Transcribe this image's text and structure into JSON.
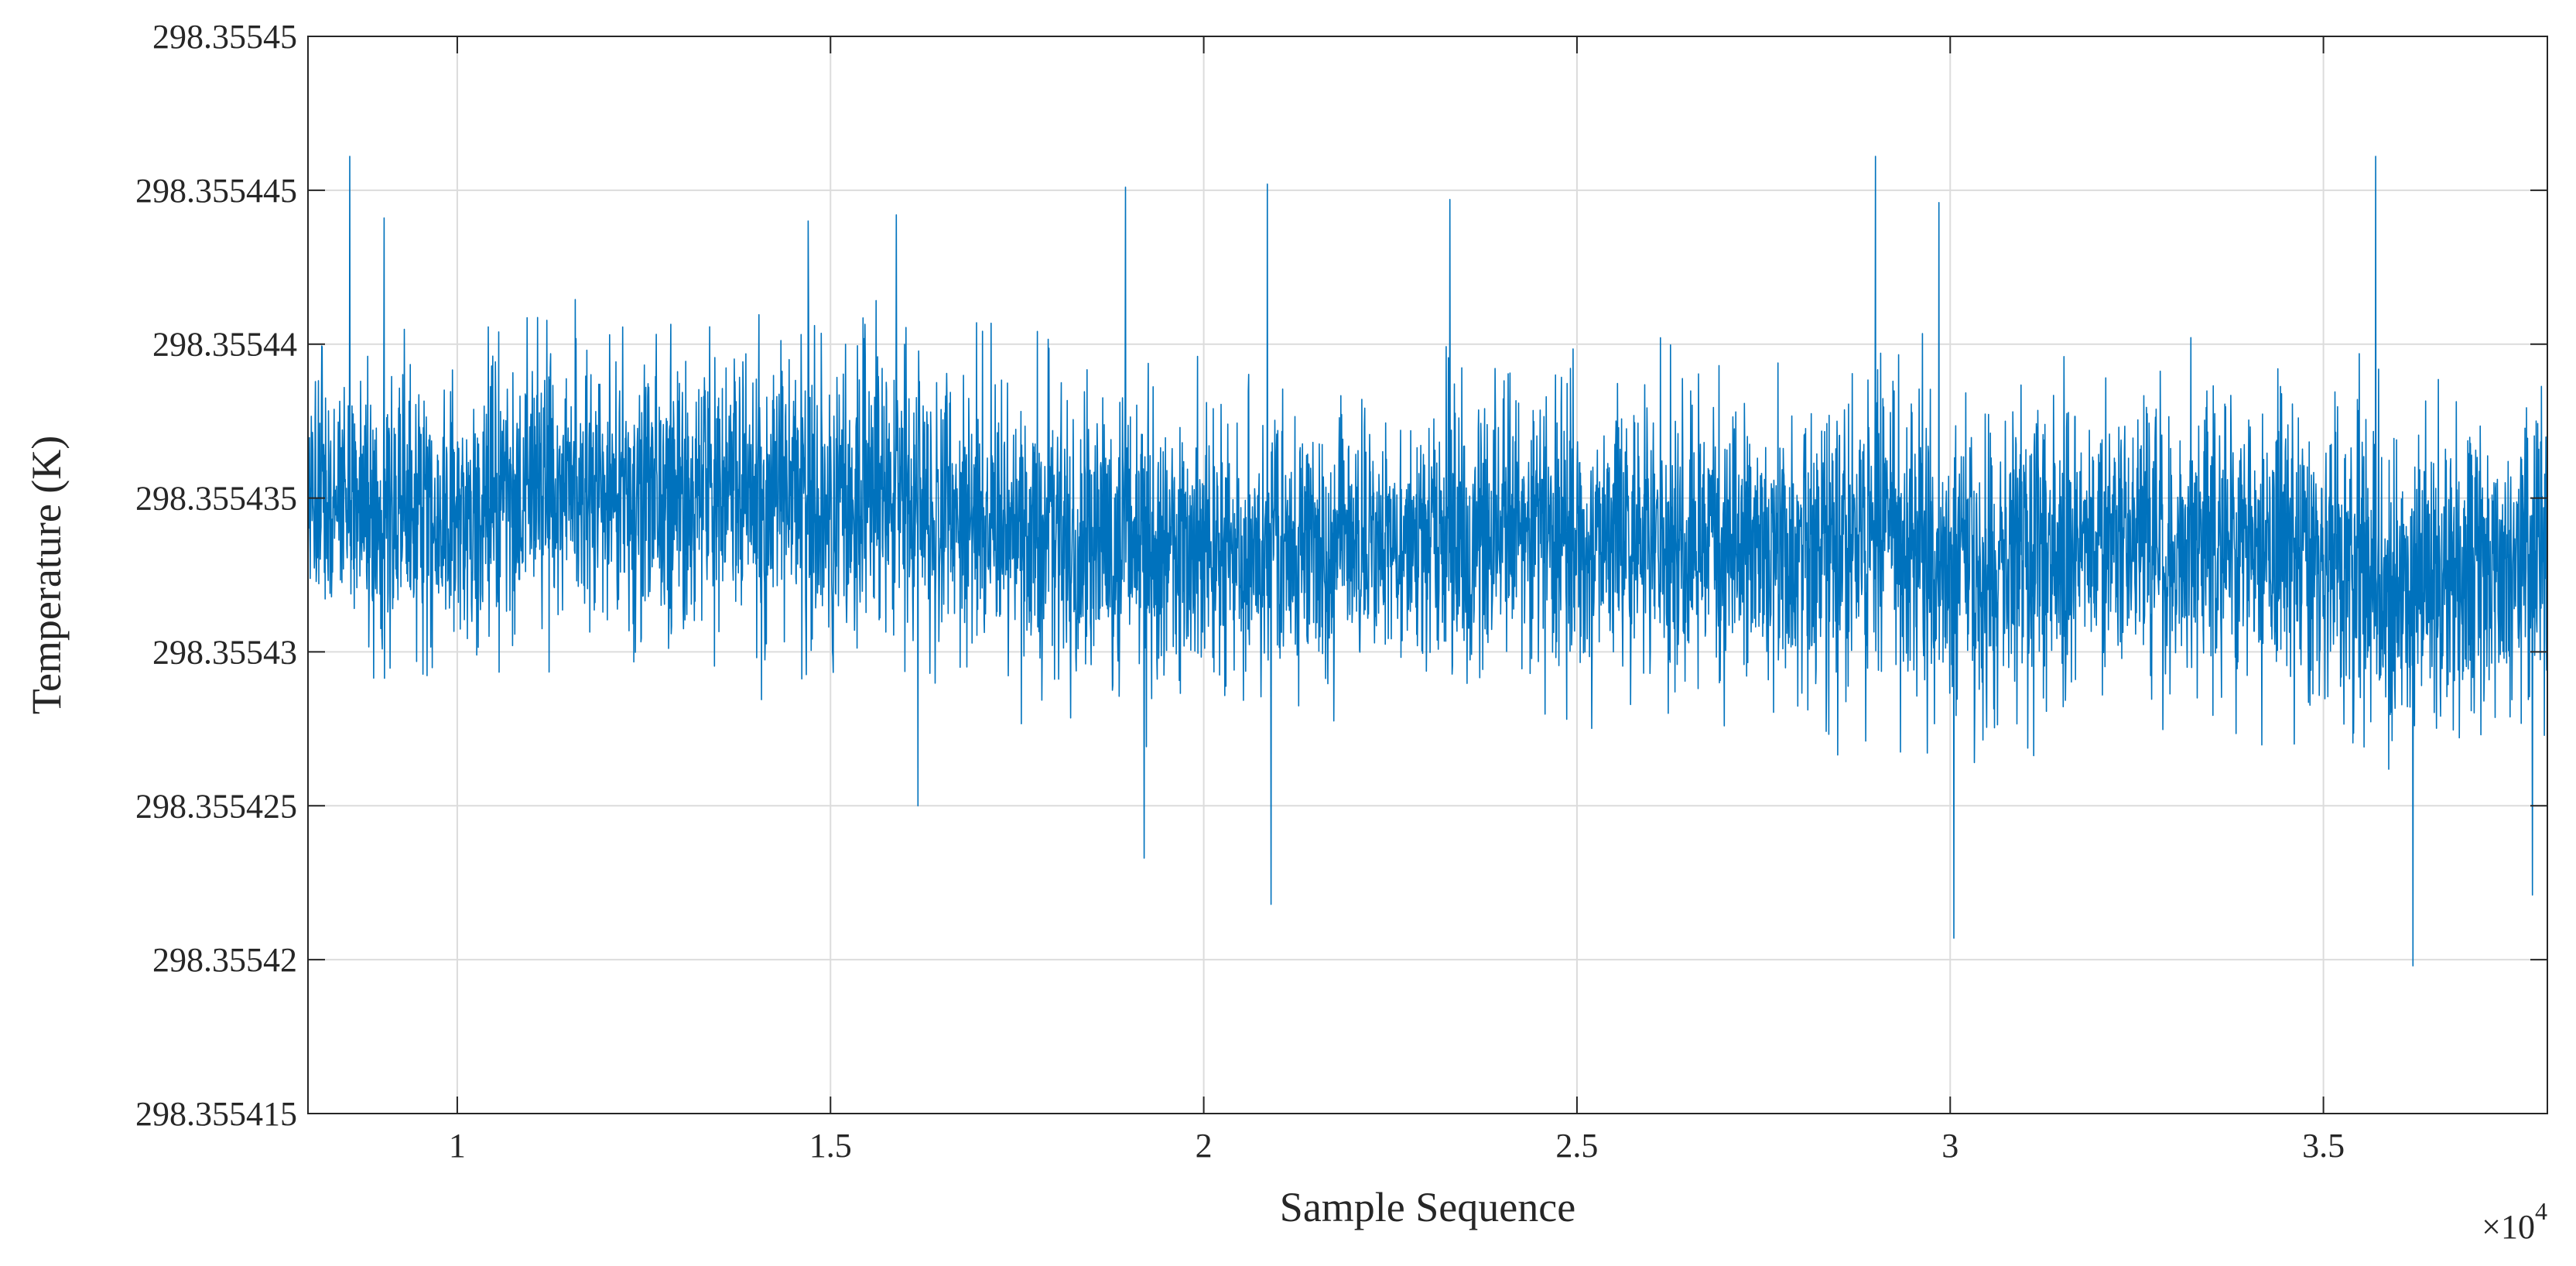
{
  "chart_data": {
    "type": "line",
    "title": "",
    "xlabel": "Sample Sequence",
    "ylabel": "Temperature (K)",
    "x_exponent_label": {
      "base": "×10",
      "power": "4"
    },
    "xlim": [
      0.8,
      3.8
    ],
    "ylim": [
      298.355415,
      298.35545
    ],
    "x_ticks": [
      {
        "value": 1,
        "label": "1"
      },
      {
        "value": 1.5,
        "label": "1.5"
      },
      {
        "value": 2,
        "label": "2"
      },
      {
        "value": 2.5,
        "label": "2.5"
      },
      {
        "value": 3,
        "label": "3"
      },
      {
        "value": 3.5,
        "label": "3.5"
      }
    ],
    "y_ticks": [
      {
        "value": 298.355415,
        "label": "298.355415"
      },
      {
        "value": 298.35542,
        "label": "298.35542"
      },
      {
        "value": 298.355425,
        "label": "298.355425"
      },
      {
        "value": 298.35543,
        "label": "298.35543"
      },
      {
        "value": 298.355435,
        "label": "298.355435"
      },
      {
        "value": 298.35544,
        "label": "298.35544"
      },
      {
        "value": 298.355445,
        "label": "298.355445"
      },
      {
        "value": 298.35545,
        "label": "298.35545"
      }
    ],
    "grid": true,
    "legend": "none",
    "series": [
      {
        "color": "#0072BD",
        "envelope": {
          "x": [
            0.8,
            1.0,
            1.1,
            1.3,
            1.5,
            1.7,
            1.85,
            2.0,
            2.2,
            2.4,
            2.6,
            2.8,
            2.9,
            3.0,
            3.2,
            3.4,
            3.6,
            3.8
          ],
          "mean": [
            298.3554349,
            298.3554343,
            298.3554351,
            298.3554352,
            298.355435,
            298.3554343,
            298.3554335,
            298.3554334,
            298.3554333,
            298.3554339,
            298.3554336,
            298.3554333,
            298.3554341,
            298.3554327,
            298.3554336,
            298.3554337,
            298.3554325,
            298.3554325
          ],
          "sigma": [
            2.1e-06,
            2.1e-06,
            2.2e-06,
            2.3e-06,
            2.4e-06,
            2.2e-06,
            2.3e-06,
            2.2e-06,
            2e-06,
            2.2e-06,
            2.2e-06,
            2.3e-06,
            2.4e-06,
            2.4e-06,
            2.2e-06,
            2.2e-06,
            2.4e-06,
            2.4e-06
          ]
        },
        "notable_points": [
          {
            "x": 0.856,
            "y": 298.3554461
          },
          {
            "x": 0.902,
            "y": 298.3554441
          },
          {
            "x": 1.47,
            "y": 298.355444
          },
          {
            "x": 1.588,
            "y": 298.3554442
          },
          {
            "x": 1.617,
            "y": 298.355425
          },
          {
            "x": 1.895,
            "y": 298.3554451
          },
          {
            "x": 1.92,
            "y": 298.3554233
          },
          {
            "x": 2.085,
            "y": 298.3554452
          },
          {
            "x": 2.09,
            "y": 298.3554218
          },
          {
            "x": 2.33,
            "y": 298.3554447
          },
          {
            "x": 2.9,
            "y": 298.3554461
          },
          {
            "x": 2.985,
            "y": 298.3554446
          },
          {
            "x": 3.005,
            "y": 298.3554207
          },
          {
            "x": 3.57,
            "y": 298.3554461
          },
          {
            "x": 3.62,
            "y": 298.3554198
          },
          {
            "x": 3.78,
            "y": 298.3554221
          }
        ]
      }
    ]
  }
}
